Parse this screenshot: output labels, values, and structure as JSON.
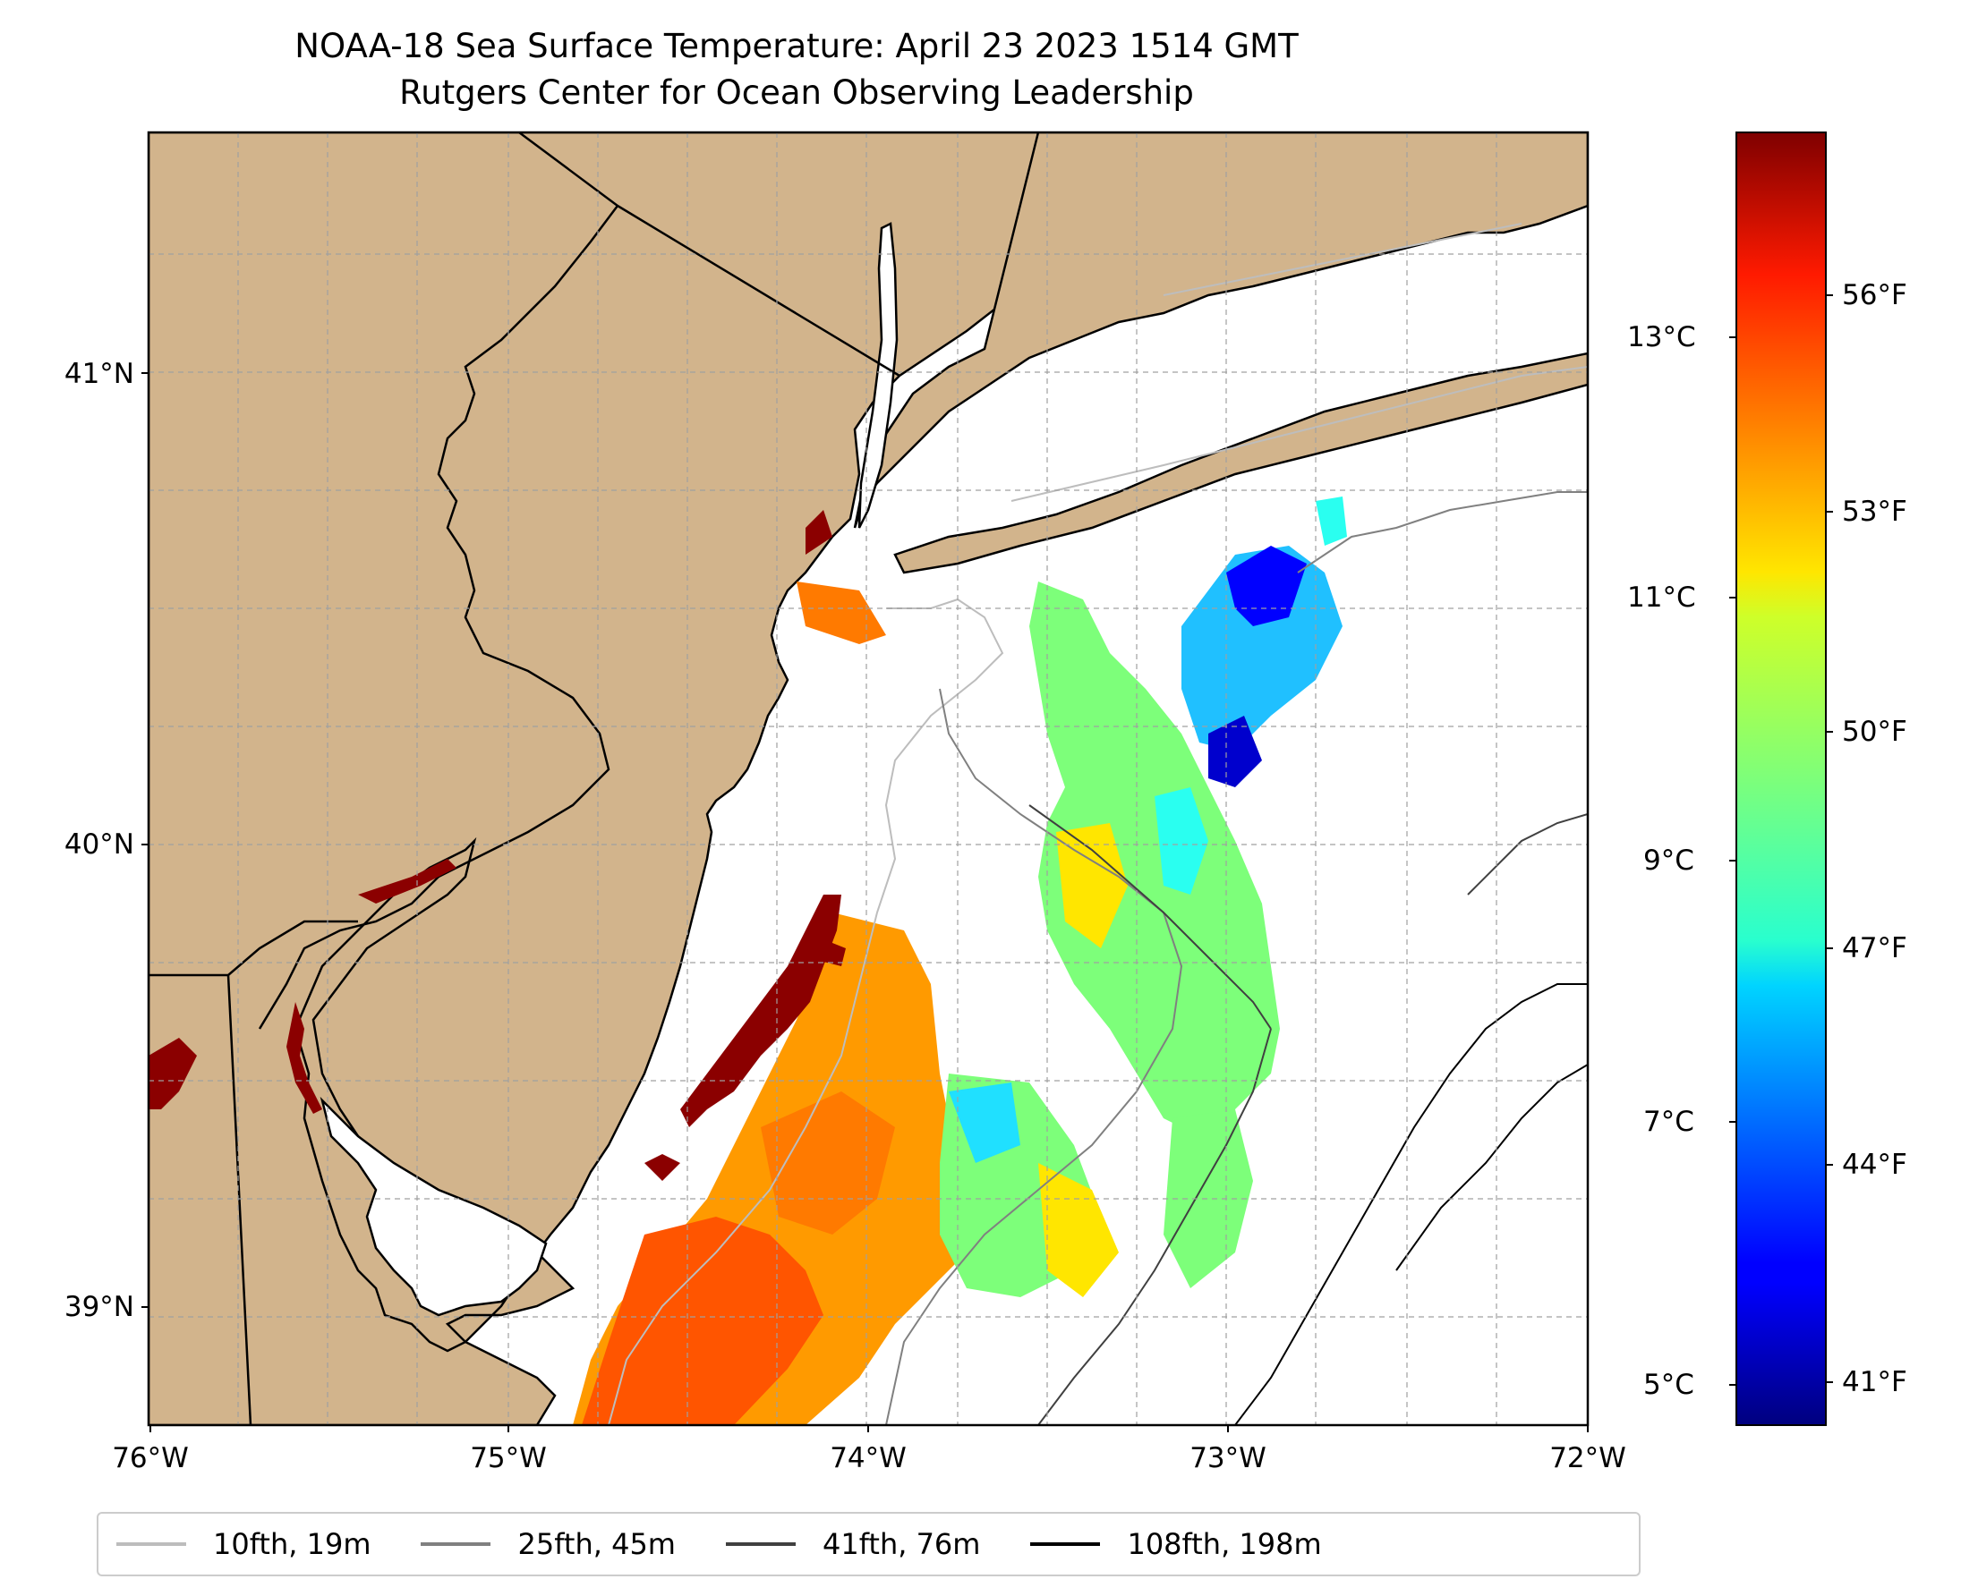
{
  "title": {
    "line1": "NOAA-18 Sea Surface Temperature: April 23 2023 1514 GMT",
    "line2": "Rutgers Center for Ocean Observing Leadership"
  },
  "map": {
    "lon_range": [
      -76,
      -72
    ],
    "lat_range": [
      38.75,
      41.5
    ],
    "lat_ticks": [
      "41°N",
      "40°N",
      "39°N"
    ],
    "lon_ticks": [
      "76°W",
      "75°W",
      "74°W",
      "73°W",
      "72°W"
    ],
    "land_color": "#d2b48c",
    "ocean_color": "#ffffff"
  },
  "colorbar": {
    "cmap": "jet",
    "celsius_labels": [
      "13°C",
      "11°C",
      "9°C",
      "7°C",
      "5°C"
    ],
    "fahrenheit_labels": [
      "56°F",
      "53°F",
      "50°F",
      "47°F",
      "44°F",
      "41°F"
    ]
  },
  "legend": {
    "items": [
      {
        "label": "10fth, 19m",
        "color": "#bdbdbd"
      },
      {
        "label": "25fth, 45m",
        "color": "#808080"
      },
      {
        "label": "41fth, 76m",
        "color": "#404040"
      },
      {
        "label": "108fth, 198m",
        "color": "#000000"
      }
    ]
  }
}
